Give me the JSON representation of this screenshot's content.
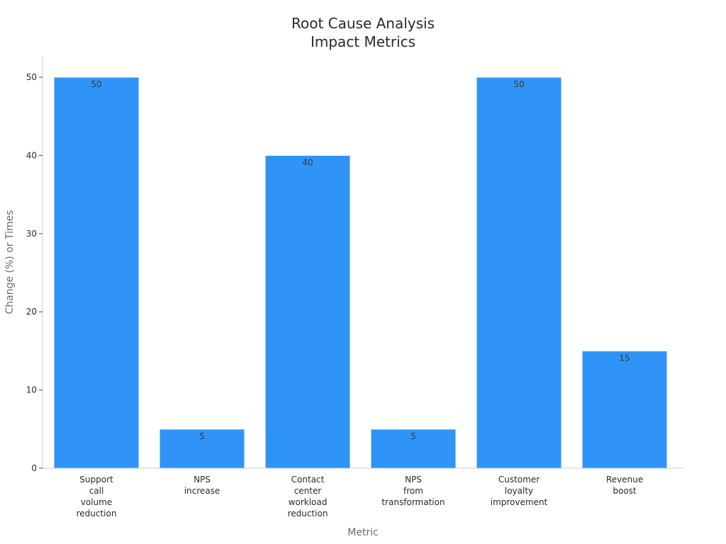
{
  "chart_data": {
    "type": "bar",
    "title": [
      "Root Cause Analysis",
      "Impact Metrics"
    ],
    "xlabel": "Metric",
    "ylabel": "Change (%) or Times",
    "ylim": [
      0,
      52.5
    ],
    "yticks": [
      0,
      10,
      20,
      30,
      40,
      50
    ],
    "grid": false,
    "categories": [
      [
        "Support",
        "call",
        "volume",
        "reduction"
      ],
      [
        "NPS",
        "increase"
      ],
      [
        "Contact",
        "center",
        "workload",
        "reduction"
      ],
      [
        "NPS",
        "from",
        "transformation"
      ],
      [
        "Customer",
        "loyalty",
        "improvement"
      ],
      [
        "Revenue",
        "boost"
      ]
    ],
    "values": [
      50,
      5,
      40,
      5,
      50,
      15
    ],
    "data_labels": [
      "50",
      "5",
      "40",
      "5",
      "50",
      "15"
    ],
    "bar_color": "#3094f7",
    "bar_edge_color": "#ffffff"
  }
}
